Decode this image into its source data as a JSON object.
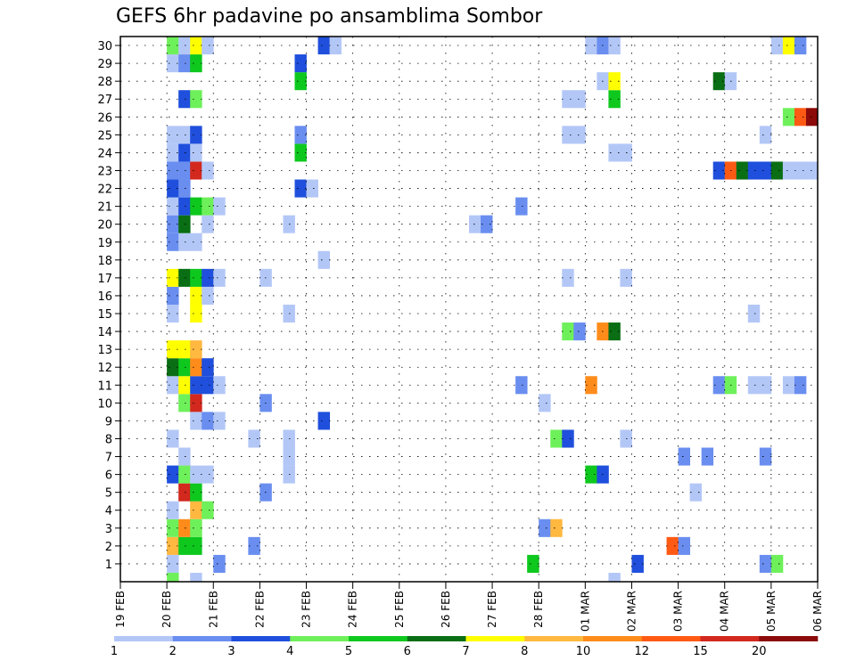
{
  "chart_data": {
    "type": "heatmap",
    "title": "GEFS 6hr padavine po ansamblima Sombor",
    "xlabel": "",
    "ylabel": "",
    "x_ticks": [
      "19 FEB",
      "20 FEB",
      "21 FEB",
      "22 FEB",
      "23 FEB",
      "24 FEB",
      "25 FEB",
      "26 FEB",
      "27 FEB",
      "28 FEB",
      "01 MAR",
      "02 MAR",
      "03 MAR",
      "04 MAR",
      "05 MAR",
      "06 MAR"
    ],
    "y_ticks": [
      1,
      2,
      3,
      4,
      5,
      6,
      7,
      8,
      9,
      10,
      11,
      12,
      13,
      14,
      15,
      16,
      17,
      18,
      19,
      20,
      21,
      22,
      23,
      24,
      25,
      26,
      27,
      28,
      29,
      30
    ],
    "x_range_steps": [
      0,
      60
    ],
    "y_range": [
      0,
      30
    ],
    "steps_per_day": 4,
    "grid": true,
    "colorbar": {
      "labels": [
        "1",
        "2",
        "3",
        "4",
        "5",
        "6",
        "7",
        "8",
        "10",
        "12",
        "15",
        "20"
      ],
      "colors": [
        "#b3c7f7",
        "#6a8ef0",
        "#1f4fdc",
        "#6ef05a",
        "#0ec81e",
        "#0a6e14",
        "#ffff00",
        "#ffb840",
        "#ff8c1a",
        "#ff5a14",
        "#d2281e",
        "#8c0a0a"
      ]
    },
    "cells": [
      {
        "m": 1,
        "t": [
          [
            4,
            0
          ],
          [
            8,
            1
          ],
          [
            35,
            4
          ],
          [
            44,
            2
          ],
          [
            55,
            1
          ],
          [
            56,
            3
          ]
        ]
      },
      {
        "m": 2,
        "t": [
          [
            4,
            7
          ],
          [
            5,
            4
          ],
          [
            6,
            4
          ],
          [
            11,
            1
          ],
          [
            47,
            9
          ],
          [
            48,
            1
          ]
        ]
      },
      {
        "m": 3,
        "t": [
          [
            4,
            3
          ],
          [
            5,
            8
          ],
          [
            6,
            3
          ],
          [
            36,
            1
          ],
          [
            37,
            7
          ]
        ]
      },
      {
        "m": 4,
        "t": [
          [
            4,
            0
          ],
          [
            6,
            7
          ],
          [
            7,
            3
          ]
        ]
      },
      {
        "m": 5,
        "t": [
          [
            5,
            10
          ],
          [
            6,
            4
          ],
          [
            12,
            1
          ],
          [
            49,
            0
          ]
        ]
      },
      {
        "m": 6,
        "t": [
          [
            4,
            2
          ],
          [
            5,
            3
          ],
          [
            6,
            0
          ],
          [
            7,
            0
          ],
          [
            14,
            0
          ],
          [
            40,
            4
          ],
          [
            41,
            2
          ]
        ]
      },
      {
        "m": 7,
        "t": [
          [
            5,
            0
          ],
          [
            14,
            0
          ],
          [
            48,
            1
          ],
          [
            50,
            1
          ],
          [
            55,
            1
          ]
        ]
      },
      {
        "m": 8,
        "t": [
          [
            4,
            0
          ],
          [
            11,
            0
          ],
          [
            14,
            0
          ],
          [
            37,
            3
          ],
          [
            38,
            2
          ],
          [
            43,
            0
          ]
        ]
      },
      {
        "m": 9,
        "t": [
          [
            6,
            0
          ],
          [
            7,
            1
          ],
          [
            8,
            0
          ],
          [
            17,
            2
          ]
        ]
      },
      {
        "m": 10,
        "t": [
          [
            5,
            3
          ],
          [
            6,
            10
          ],
          [
            12,
            1
          ],
          [
            36,
            0
          ]
        ]
      },
      {
        "m": 11,
        "t": [
          [
            4,
            0
          ],
          [
            5,
            6
          ],
          [
            6,
            2
          ],
          [
            7,
            2
          ],
          [
            8,
            0
          ],
          [
            34,
            1
          ],
          [
            40,
            8
          ],
          [
            51,
            1
          ],
          [
            52,
            3
          ],
          [
            54,
            0
          ],
          [
            55,
            0
          ],
          [
            57,
            0
          ],
          [
            58,
            1
          ]
        ]
      },
      {
        "m": 12,
        "t": [
          [
            4,
            5
          ],
          [
            5,
            4
          ],
          [
            6,
            8
          ],
          [
            7,
            2
          ]
        ]
      },
      {
        "m": 13,
        "t": [
          [
            4,
            6
          ],
          [
            5,
            6
          ],
          [
            6,
            7
          ]
        ]
      },
      {
        "m": 14,
        "t": [
          [
            38,
            3
          ],
          [
            39,
            1
          ],
          [
            41,
            8
          ],
          [
            42,
            5
          ]
        ]
      },
      {
        "m": 15,
        "t": [
          [
            4,
            0
          ],
          [
            6,
            6
          ],
          [
            14,
            0
          ],
          [
            54,
            0
          ]
        ]
      },
      {
        "m": 16,
        "t": [
          [
            4,
            1
          ],
          [
            6,
            6
          ],
          [
            7,
            0
          ]
        ]
      },
      {
        "m": 17,
        "t": [
          [
            4,
            6
          ],
          [
            5,
            5
          ],
          [
            6,
            4
          ],
          [
            7,
            2
          ],
          [
            8,
            0
          ],
          [
            12,
            0
          ],
          [
            38,
            0
          ],
          [
            43,
            0
          ]
        ]
      },
      {
        "m": 18,
        "t": [
          [
            17,
            0
          ]
        ]
      },
      {
        "m": 19,
        "t": [
          [
            4,
            1
          ],
          [
            5,
            0
          ],
          [
            6,
            0
          ]
        ]
      },
      {
        "m": 20,
        "t": [
          [
            4,
            1
          ],
          [
            5,
            5
          ],
          [
            7,
            0
          ],
          [
            14,
            0
          ],
          [
            30,
            0
          ],
          [
            31,
            1
          ]
        ]
      },
      {
        "m": 21,
        "t": [
          [
            4,
            0
          ],
          [
            5,
            2
          ],
          [
            6,
            4
          ],
          [
            7,
            3
          ],
          [
            8,
            0
          ],
          [
            34,
            1
          ]
        ]
      },
      {
        "m": 22,
        "t": [
          [
            4,
            2
          ],
          [
            5,
            1
          ],
          [
            15,
            2
          ],
          [
            16,
            0
          ]
        ]
      },
      {
        "m": 23,
        "t": [
          [
            4,
            1
          ],
          [
            5,
            1
          ],
          [
            6,
            10
          ],
          [
            7,
            0
          ],
          [
            51,
            2
          ],
          [
            52,
            9
          ],
          [
            53,
            5
          ],
          [
            54,
            2
          ],
          [
            55,
            2
          ],
          [
            56,
            5
          ],
          [
            57,
            0
          ],
          [
            58,
            0
          ],
          [
            59,
            0
          ]
        ]
      },
      {
        "m": 24,
        "t": [
          [
            4,
            0
          ],
          [
            5,
            2
          ],
          [
            6,
            0
          ],
          [
            15,
            4
          ],
          [
            42,
            0
          ],
          [
            43,
            0
          ]
        ]
      },
      {
        "m": 25,
        "t": [
          [
            4,
            0
          ],
          [
            5,
            0
          ],
          [
            6,
            2
          ],
          [
            15,
            1
          ],
          [
            38,
            0
          ],
          [
            39,
            0
          ],
          [
            55,
            0
          ]
        ]
      },
      {
        "m": 26,
        "t": [
          [
            57,
            3
          ],
          [
            58,
            9
          ],
          [
            59,
            11
          ]
        ]
      },
      {
        "m": 27,
        "t": [
          [
            5,
            2
          ],
          [
            6,
            3
          ],
          [
            38,
            0
          ],
          [
            39,
            0
          ],
          [
            42,
            4
          ]
        ]
      },
      {
        "m": 28,
        "t": [
          [
            15,
            4
          ],
          [
            41,
            0
          ],
          [
            42,
            6
          ],
          [
            51,
            5
          ],
          [
            52,
            0
          ]
        ]
      },
      {
        "m": 29,
        "t": [
          [
            4,
            0
          ],
          [
            5,
            1
          ],
          [
            6,
            4
          ],
          [
            15,
            2
          ]
        ]
      },
      {
        "m": 30,
        "t": [
          [
            4,
            3
          ],
          [
            5,
            0
          ],
          [
            6,
            6
          ],
          [
            7,
            0
          ],
          [
            17,
            2
          ],
          [
            18,
            0
          ],
          [
            40,
            0
          ],
          [
            41,
            1
          ],
          [
            42,
            0
          ],
          [
            56,
            0
          ],
          [
            57,
            6
          ],
          [
            58,
            1
          ]
        ]
      },
      {
        "m": 0,
        "t": [
          [
            4,
            3
          ],
          [
            6,
            0
          ],
          [
            42,
            0
          ]
        ]
      }
    ]
  }
}
